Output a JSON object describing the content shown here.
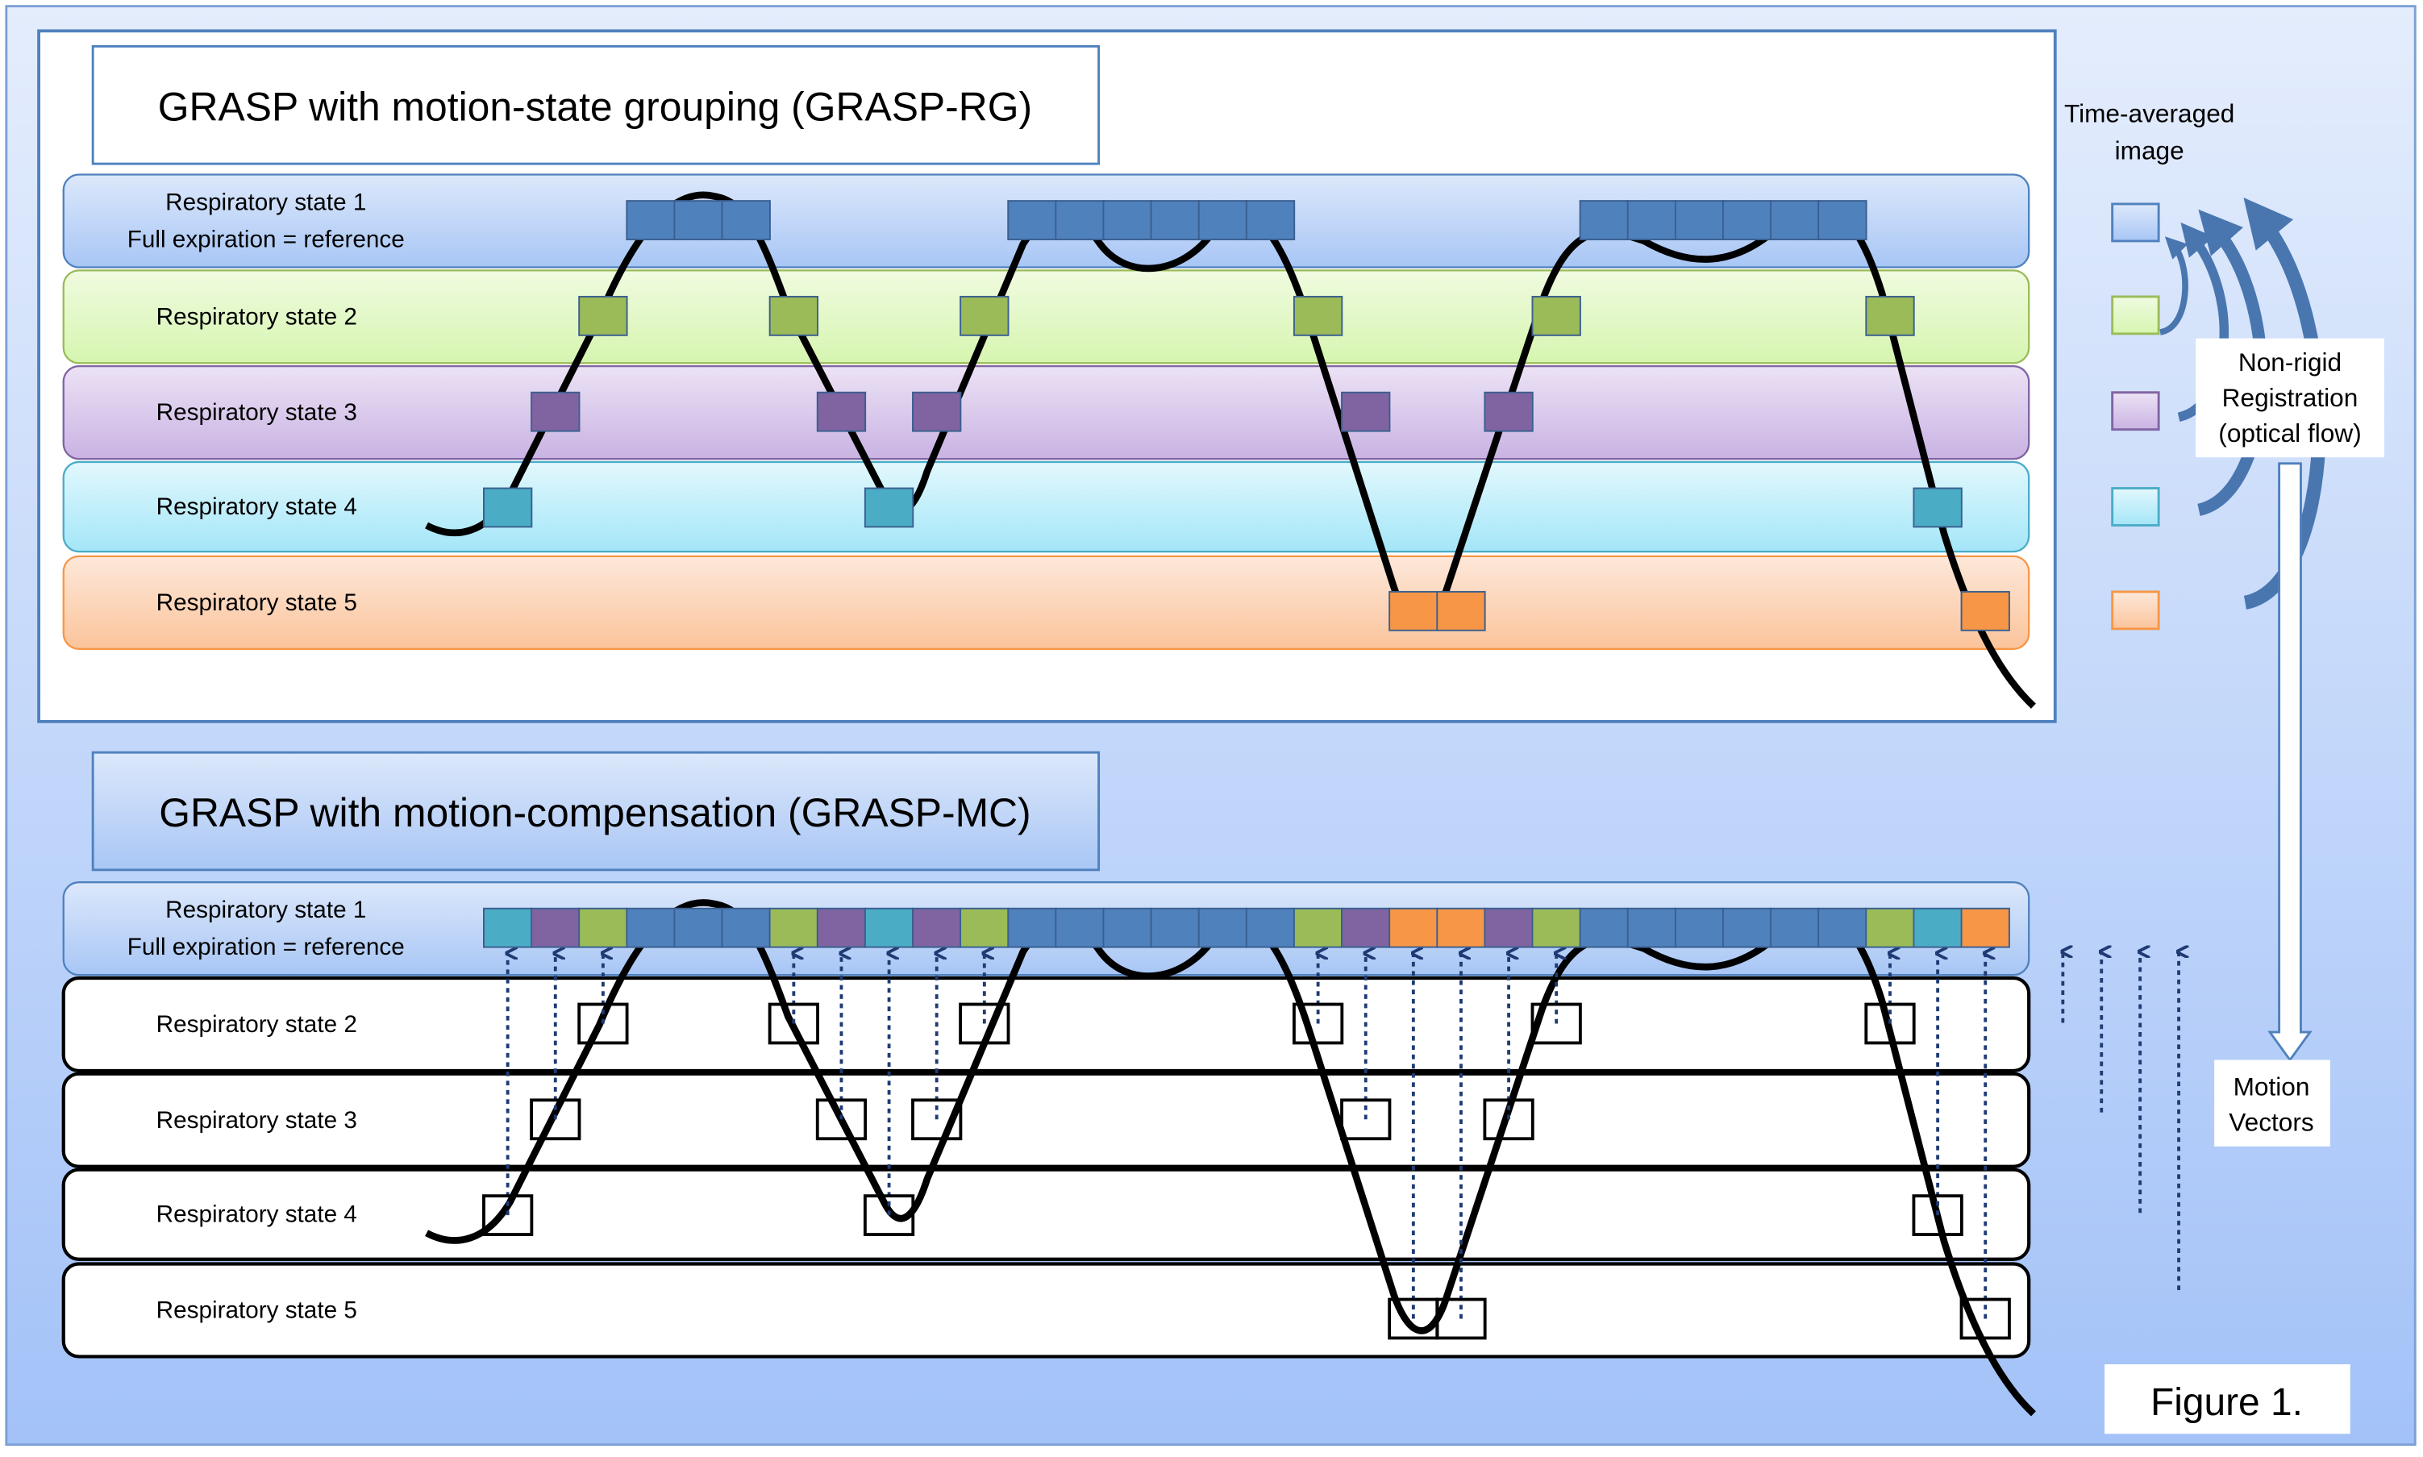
{
  "panel_rg": {
    "title": "GRASP with motion-state grouping (GRASP-RG)",
    "row_labels": [
      [
        "Respiratory state 1",
        "Full expiration = reference"
      ],
      [
        "Respiratory state 2"
      ],
      [
        "Respiratory state 3"
      ],
      [
        "Respiratory state 4"
      ],
      [
        "Respiratory state 5"
      ]
    ]
  },
  "panel_mc": {
    "title": "GRASP with motion-compensation (GRASP-MC)",
    "row_labels": [
      [
        "Respiratory state 1",
        "Full expiration = reference"
      ],
      [
        "Respiratory state 2"
      ],
      [
        "Respiratory state 3"
      ],
      [
        "Respiratory state 4"
      ],
      [
        "Respiratory state 5"
      ]
    ]
  },
  "sample_states": [
    4,
    3,
    2,
    1,
    1,
    1,
    2,
    3,
    4,
    3,
    2,
    1,
    1,
    1,
    1,
    1,
    1,
    2,
    3,
    5,
    5,
    3,
    2,
    1,
    1,
    1,
    1,
    1,
    1,
    2,
    4,
    5
  ],
  "state_colors": {
    "1": "#4f81bd",
    "2": "#9bbb59",
    "3": "#8064a2",
    "4": "#4bacc6",
    "5": "#f79646"
  },
  "band_colors": {
    "1": [
      "#dce8fb",
      "#a8c6f5"
    ],
    "2": [
      "#f0fbe0",
      "#d6f5b0"
    ],
    "3": [
      "#ece2f5",
      "#c9b3e3"
    ],
    "4": [
      "#e2f8fd",
      "#a4e6f8"
    ],
    "5": [
      "#fde8da",
      "#fbc49b"
    ]
  },
  "right": {
    "time_avg_line1": "Time-averaged",
    "time_avg_line2": "image",
    "registration": [
      "Non-rigid",
      "Registration",
      "(optical flow)"
    ],
    "motion_vectors": [
      "Motion",
      "Vectors"
    ],
    "figure_label": "Figure 1."
  }
}
